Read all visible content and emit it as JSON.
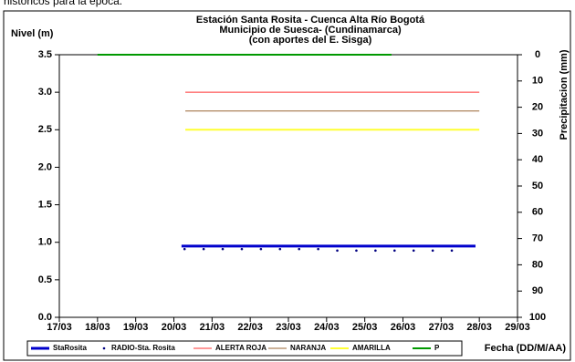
{
  "note": "históricos para la época.",
  "chart_data": {
    "type": "line",
    "title": [
      "Estación Santa Rosita - Cuenca Alta Río Bogotá",
      "Municipio de Suesca- (Cundinamarca)",
      "(con aportes del  E. Sisga)"
    ],
    "y_label": "Nivel (m)",
    "y2_label": "Precipitacion (mm)",
    "x_label": "Fecha (DD/M/AA)",
    "xlim": [
      17,
      29
    ],
    "xticks": [
      {
        "value": 17,
        "label": "17/03"
      },
      {
        "value": 18,
        "label": "18/03"
      },
      {
        "value": 19,
        "label": "19/03"
      },
      {
        "value": 20,
        "label": "20/03"
      },
      {
        "value": 21,
        "label": "21/03"
      },
      {
        "value": 22,
        "label": "22/03"
      },
      {
        "value": 23,
        "label": "23/03"
      },
      {
        "value": 24,
        "label": "24/03"
      },
      {
        "value": 25,
        "label": "25/03"
      },
      {
        "value": 26,
        "label": "26/03"
      },
      {
        "value": 27,
        "label": "27/03"
      },
      {
        "value": 28,
        "label": "28/03"
      },
      {
        "value": 29,
        "label": "29/03"
      }
    ],
    "ylim": [
      0,
      3.5
    ],
    "yticks": [
      {
        "value": 0,
        "label": "0.0"
      },
      {
        "value": 0.5,
        "label": "0.5"
      },
      {
        "value": 1,
        "label": "1.0"
      },
      {
        "value": 1.5,
        "label": "1.5"
      },
      {
        "value": 2,
        "label": "2.0"
      },
      {
        "value": 2.5,
        "label": "2.5"
      },
      {
        "value": 3,
        "label": "3.0"
      },
      {
        "value": 3.5,
        "label": "3.5"
      }
    ],
    "y2lim": [
      0,
      100
    ],
    "y2_inverted": true,
    "y2ticks": [
      0,
      10,
      20,
      30,
      40,
      50,
      60,
      70,
      80,
      90,
      100
    ],
    "series": [
      {
        "name": "StaRosita",
        "color": "#0000cc",
        "style": "line",
        "width": 3,
        "x": [
          20.2,
          27.9
        ],
        "values": [
          0.95,
          0.95
        ]
      },
      {
        "name": "RADIO-Sta. Rosita",
        "color": "#000080",
        "style": "dots",
        "x": [
          20.28,
          20.78,
          21.28,
          21.78,
          22.28,
          22.78,
          23.28,
          23.78,
          24.28,
          24.78,
          25.28,
          25.78,
          26.28,
          26.78,
          27.28
        ],
        "values": [
          0.91,
          0.91,
          0.91,
          0.91,
          0.91,
          0.91,
          0.91,
          0.91,
          0.89,
          0.89,
          0.89,
          0.89,
          0.89,
          0.89,
          0.89
        ]
      },
      {
        "name": "ALERTA ROJA",
        "color": "#ff3333",
        "style": "line",
        "width": 1,
        "x": [
          20.3,
          28.0
        ],
        "values": [
          3.0,
          3.0
        ]
      },
      {
        "name": "NARANJA",
        "color": "#996633",
        "style": "line",
        "width": 1,
        "x": [
          20.3,
          28.0
        ],
        "values": [
          2.75,
          2.75
        ]
      },
      {
        "name": "AMARILLA",
        "color": "#ffff33",
        "style": "line",
        "width": 2,
        "x": [
          20.3,
          28.0
        ],
        "values": [
          2.5,
          2.5
        ]
      },
      {
        "name": "P",
        "color": "#009900",
        "style": "line",
        "width": 2,
        "axis": "y2",
        "x": [
          18.0,
          25.7
        ],
        "values": [
          0,
          0
        ]
      }
    ]
  }
}
